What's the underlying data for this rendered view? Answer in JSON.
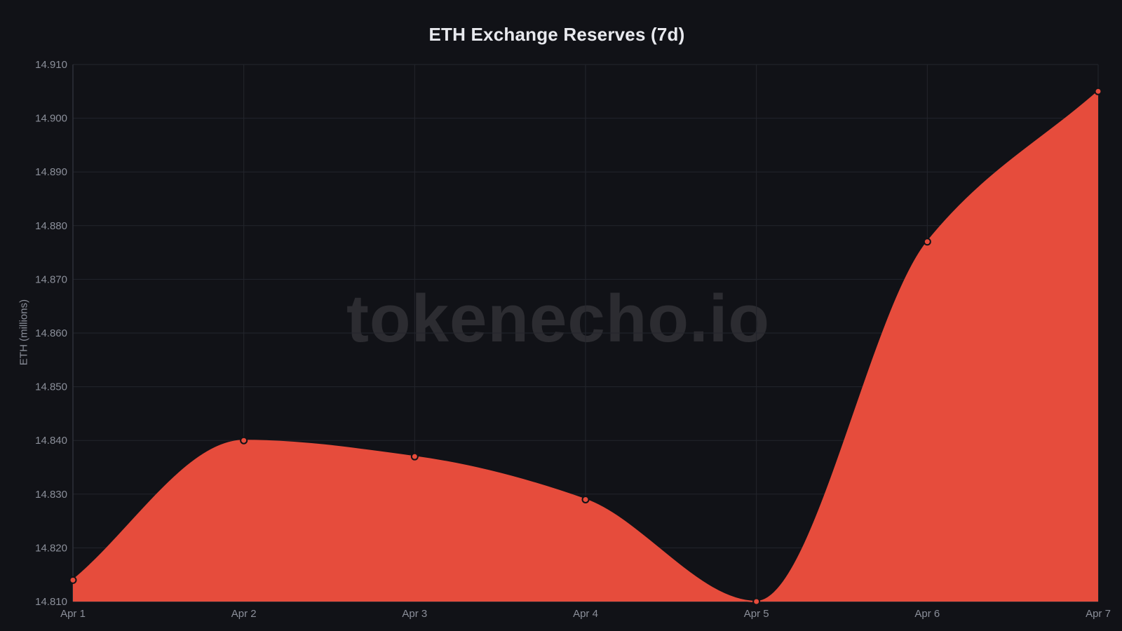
{
  "chart_data": {
    "type": "area",
    "title": "ETH Exchange Reserves (7d)",
    "xlabel": "",
    "ylabel": "ETH (millions)",
    "categories": [
      "Apr 1",
      "Apr 2",
      "Apr 3",
      "Apr 4",
      "Apr 5",
      "Apr 6",
      "Apr 7"
    ],
    "values": [
      14.814,
      14.84,
      14.837,
      14.829,
      14.81,
      14.877,
      14.905
    ],
    "ylim": [
      14.81,
      14.91
    ],
    "y_ticks": [
      "14.810",
      "14.820",
      "14.830",
      "14.840",
      "14.850",
      "14.860",
      "14.870",
      "14.880",
      "14.890",
      "14.900",
      "14.910"
    ],
    "grid": true,
    "legend": "none",
    "colors": {
      "background": "#111217",
      "fill": "#e64c3c",
      "line": "#e64c3c",
      "grid": "#23252c",
      "tick_text": "#8b8f9a",
      "title_text": "#e8e9ee"
    }
  },
  "watermark": "tokenecho.io"
}
